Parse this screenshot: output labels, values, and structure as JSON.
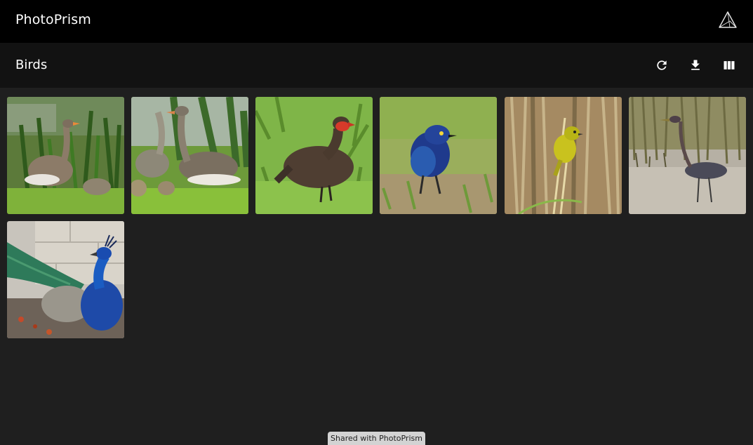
{
  "app": {
    "brand": "PhotoPrism",
    "logo_icon": "prism-triangle-icon"
  },
  "album": {
    "title": "Birds",
    "actions": [
      {
        "name": "reload",
        "icon": "refresh-icon"
      },
      {
        "name": "download",
        "icon": "download-icon"
      },
      {
        "name": "view-toggle",
        "icon": "view-column-icon"
      }
    ]
  },
  "photos": [
    {
      "subject": "greylag goose",
      "icon": "goose-photo"
    },
    {
      "subject": "geese pair",
      "icon": "geese-photo"
    },
    {
      "subject": "red-necked spurfowl",
      "icon": "spurfowl-photo"
    },
    {
      "subject": "glossy starling",
      "icon": "starling-photo"
    },
    {
      "subject": "yellow weaver",
      "icon": "weaver-photo"
    },
    {
      "subject": "purple heron",
      "icon": "heron-photo"
    },
    {
      "subject": "peacock",
      "icon": "peacock-photo"
    }
  ],
  "footer": {
    "shared_label": "Shared with PhotoPrism"
  },
  "colors": {
    "app_bar": "#000000",
    "toolbar": "#121212",
    "background": "#1f1f1f",
    "badge": "#d3d3d3"
  }
}
